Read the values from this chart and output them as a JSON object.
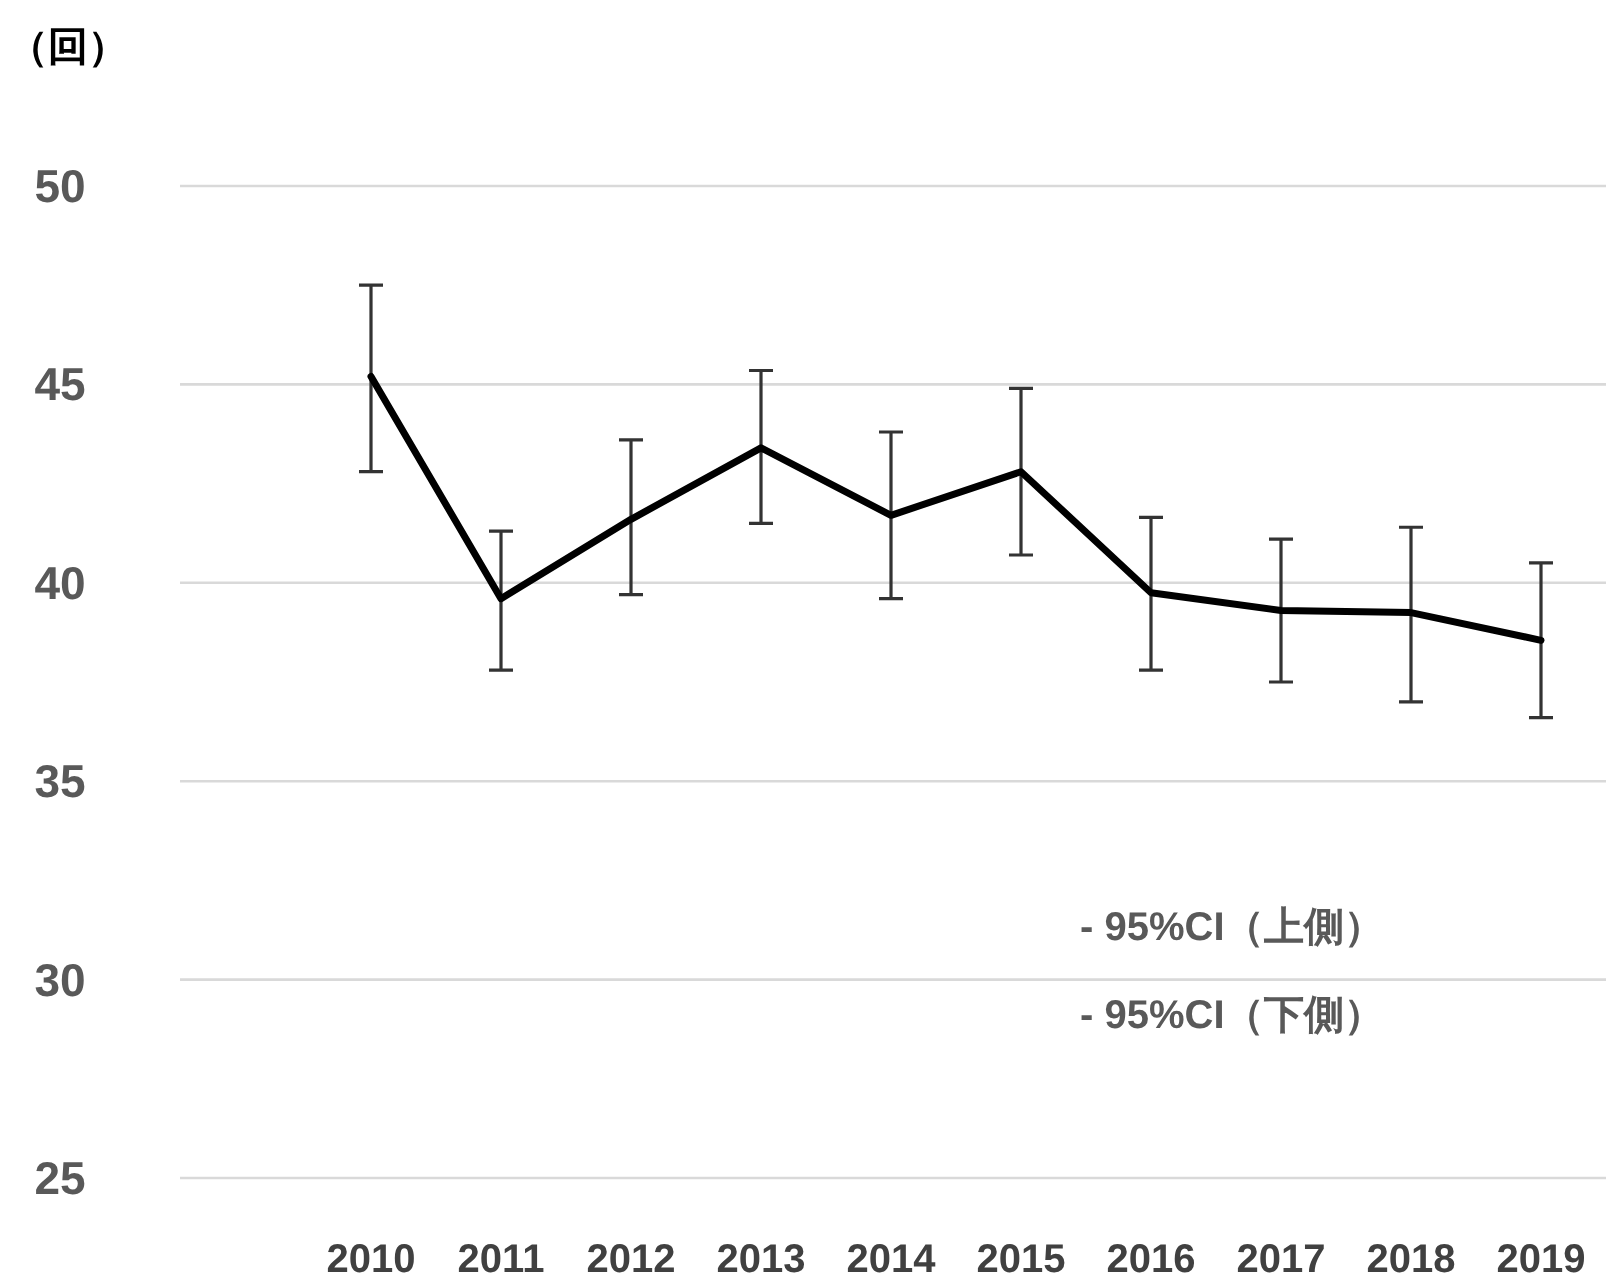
{
  "chart_data": {
    "type": "line",
    "ylabel": "（回）",
    "categories": [
      "2010",
      "2011",
      "2012",
      "2013",
      "2014",
      "2015",
      "2016",
      "2017",
      "2018",
      "2019"
    ],
    "series": [
      {
        "color": "#000000",
        "values": [
          45.2,
          39.6,
          41.6,
          43.4,
          41.7,
          42.8,
          39.75,
          39.3,
          39.25,
          38.55
        ],
        "errors": [
          [
            42.8,
            47.5
          ],
          [
            37.8,
            41.3
          ],
          [
            39.7,
            43.6
          ],
          [
            41.5,
            45.35
          ],
          [
            39.6,
            43.8
          ],
          [
            40.7,
            44.9
          ],
          [
            37.8,
            41.65
          ],
          [
            37.5,
            41.1
          ],
          [
            37.0,
            41.4
          ],
          [
            36.6,
            40.5
          ]
        ]
      }
    ],
    "annotations": [
      "- 95%CI（上側）",
      "- 95%CI（下側）"
    ],
    "ylim": [
      25,
      50
    ],
    "yticks": [
      25,
      30,
      35,
      40,
      45,
      50
    ],
    "grid": "y"
  }
}
